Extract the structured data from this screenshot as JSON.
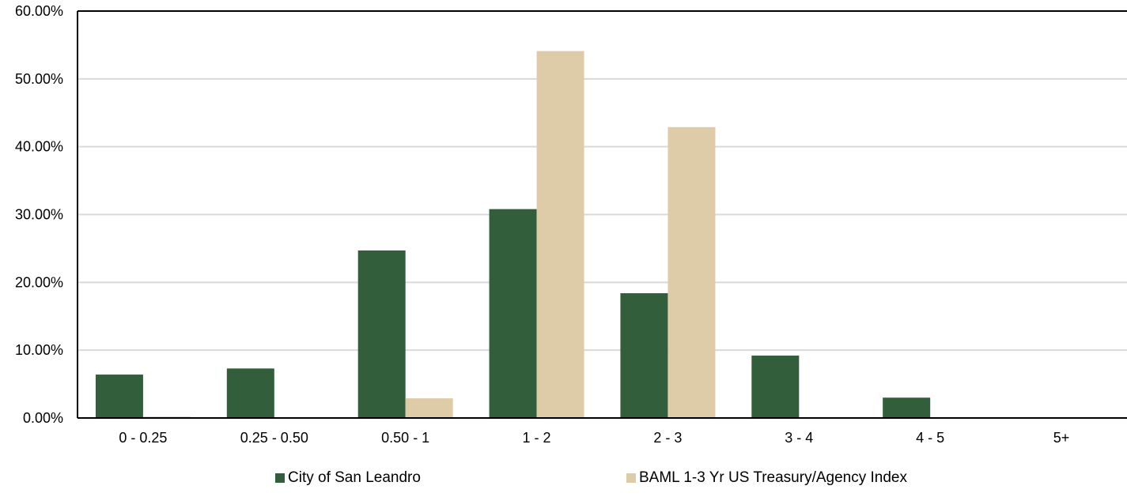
{
  "chart_data": {
    "type": "bar",
    "categories": [
      "0 - 0.25",
      "0.25 - 0.50",
      "0.50 - 1",
      "1 - 2",
      "2 - 3",
      "3 - 4",
      "4 - 5",
      "5+"
    ],
    "series": [
      {
        "name": "City of San Leandro",
        "color": "#335e3c",
        "values": [
          6.4,
          7.3,
          24.7,
          30.8,
          18.4,
          9.2,
          3.0,
          0.0
        ]
      },
      {
        "name": "BAML 1-3 Yr US Treasury/Agency Index",
        "color": "#ddcca7",
        "values": [
          0.2,
          0.0,
          2.9,
          54.1,
          42.9,
          0.0,
          0.0,
          0.0
        ]
      }
    ],
    "ylim": [
      0,
      60
    ],
    "yticks": [
      "0.00%",
      "10.00%",
      "20.00%",
      "30.00%",
      "40.00%",
      "50.00%",
      "60.00%"
    ],
    "grid": true,
    "legend_position": "bottom"
  }
}
